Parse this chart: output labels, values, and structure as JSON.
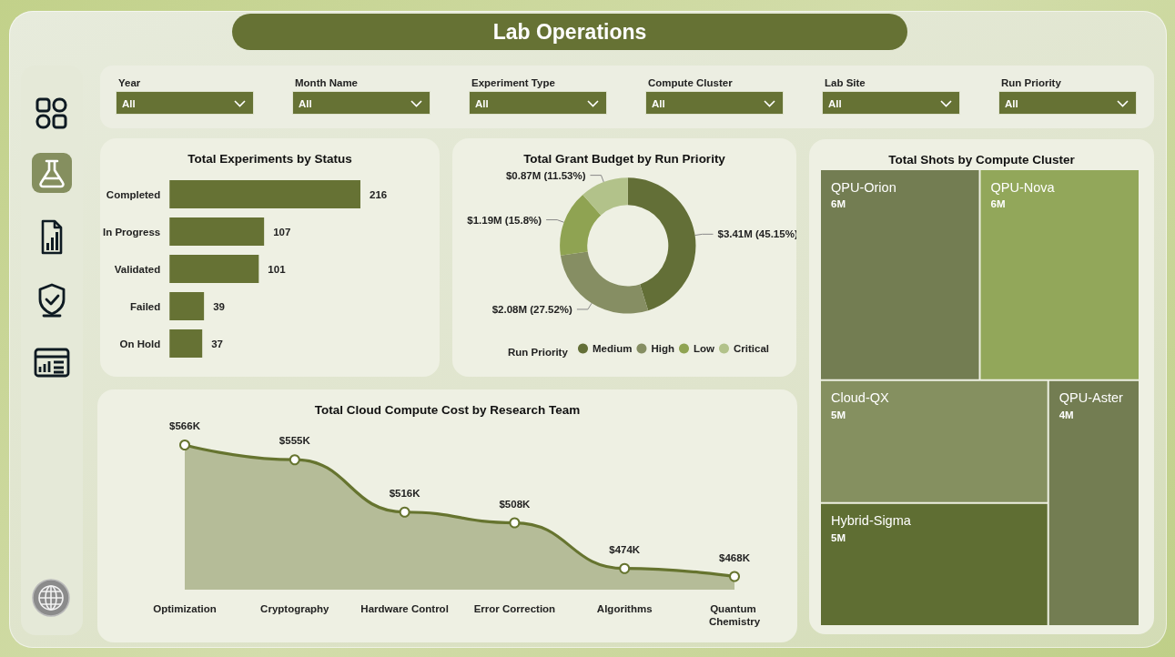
{
  "chart_data": [
    {
      "type": "other",
      "title": "Lab Operations",
      "annotations": [
        "Year",
        "All",
        "Month Name",
        "All",
        "Experiment Type",
        "All",
        "Compute Cluster",
        "All",
        "Lab Site",
        "All",
        "Run Priority",
        "All"
      ]
    },
    {
      "type": "bar",
      "title": "Total Experiments by Status",
      "orientation": "horizontal",
      "categories": [
        "Completed",
        "In Progress",
        "Validated",
        "Failed",
        "On Hold"
      ],
      "values": [
        216,
        107,
        101,
        39,
        37
      ],
      "color": "#667234",
      "data_labels": true,
      "tick_labels": "y"
    },
    {
      "type": "donut",
      "title": "Total Grant Budget by Run Priority",
      "categories": [
        "Medium",
        "High",
        "Low",
        "Critical"
      ],
      "values": [
        45.15,
        27.52,
        15.8,
        11.53
      ],
      "colors": [
        "#636f37",
        "#868e63",
        "#8fa352",
        "#b2c28a"
      ],
      "value_labels": [
        "$3.41M (45.15%)",
        "$2.08M (27.52%)",
        "$1.19M (15.8%)",
        "$0.87M (11.53%)"
      ],
      "legend": "bottom",
      "legend_title": "Run Priority"
    },
    {
      "type": "other",
      "title": "Total Shots by Compute Cluster",
      "categories": [
        "QPU-Orion",
        "QPU-Nova",
        "Cloud-QX",
        "Hybrid-Sigma",
        "QPU-Aster"
      ],
      "values": [
        6,
        6,
        5,
        5,
        4
      ],
      "value_labels": [
        "6M",
        "6M",
        "5M",
        "5M",
        "4M"
      ],
      "colors": [
        "#737d52",
        "#92a75a",
        "#859060",
        "#5f6e33",
        "#737d52"
      ]
    },
    {
      "type": "area",
      "title": "Total Cloud Compute Cost by Research Team",
      "categories": [
        "Optimization",
        "Cryptography",
        "Hardware Control",
        "Error Correction",
        "Algorithms",
        "Quantum Chemistry"
      ],
      "values": [
        566,
        555,
        516,
        508,
        474,
        468
      ],
      "value_labels": [
        "$566K",
        "$555K",
        "$516K",
        "$508K",
        "$474K",
        "$468K"
      ],
      "color": "#66742f",
      "marker": "circle",
      "tick_labels": "x"
    }
  ]
}
